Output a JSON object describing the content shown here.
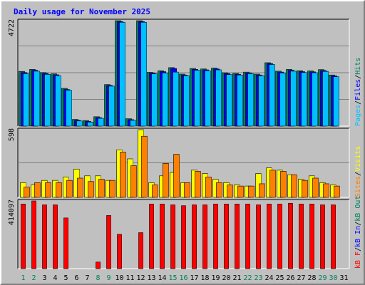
{
  "chart_data": [
    {
      "type": "bar",
      "title": "Daily usage for November 2025",
      "categories": [
        "1",
        "2",
        "3",
        "4",
        "5",
        "6",
        "7",
        "8",
        "9",
        "10",
        "11",
        "12",
        "13",
        "14",
        "15",
        "16",
        "17",
        "18",
        "19",
        "20",
        "21",
        "22",
        "23",
        "24",
        "25",
        "26",
        "27",
        "28",
        "29",
        "30",
        "31"
      ],
      "weekend_days": [
        "1",
        "2",
        "8",
        "9",
        "15",
        "16",
        "22",
        "23",
        "29",
        "30"
      ],
      "ylim": [
        0,
        4722
      ],
      "y_tick_label": "4722",
      "right_label": [
        "Pages",
        "/",
        "Files",
        "/",
        "Hits"
      ],
      "series": [
        {
          "name": "Hits",
          "values": [
            2450,
            2540,
            2400,
            2340,
            1690,
            300,
            250,
            420,
            1860,
            4722,
            330,
            4722,
            2410,
            2480,
            2620,
            2330,
            2580,
            2560,
            2600,
            2390,
            2360,
            2420,
            2330,
            2840,
            2460,
            2540,
            2480,
            2470,
            2530,
            2290,
            0
          ]
        },
        {
          "name": "Files",
          "values": [
            2400,
            2500,
            2360,
            2300,
            1640,
            260,
            210,
            380,
            1820,
            4680,
            290,
            4680,
            2370,
            2440,
            2580,
            2290,
            2540,
            2520,
            2560,
            2350,
            2320,
            2380,
            2290,
            2800,
            2420,
            2500,
            2440,
            2430,
            2490,
            2250,
            0
          ]
        },
        {
          "name": "Pages",
          "values": [
            2350,
            2460,
            2320,
            2260,
            1610,
            230,
            180,
            350,
            1790,
            4650,
            260,
            4650,
            2340,
            2380,
            2420,
            2260,
            2500,
            2480,
            2520,
            2310,
            2290,
            2350,
            2260,
            2760,
            2380,
            2460,
            2400,
            2390,
            2450,
            2210,
            0
          ]
        }
      ],
      "colors": {
        "Hits": "#00805c",
        "Files": "#0000ff",
        "Pages": "#00c0ff"
      }
    },
    {
      "type": "bar",
      "ylim": [
        0,
        598
      ],
      "y_tick_label": "598",
      "right_label": [
        "Sites",
        "/",
        "Visits"
      ],
      "series": [
        {
          "name": "Visits",
          "values": [
            130,
            110,
            150,
            150,
            180,
            250,
            190,
            190,
            150,
            420,
            340,
            598,
            130,
            190,
            220,
            130,
            240,
            210,
            160,
            130,
            110,
            100,
            210,
            260,
            240,
            200,
            160,
            190,
            130,
            110,
            0
          ]
        },
        {
          "name": "Sites",
          "values": [
            90,
            130,
            130,
            130,
            150,
            170,
            140,
            160,
            150,
            400,
            280,
            540,
            110,
            300,
            380,
            130,
            230,
            180,
            130,
            110,
            100,
            100,
            120,
            240,
            230,
            200,
            150,
            170,
            120,
            100,
            0
          ]
        }
      ],
      "colors": {
        "Visits": "#ffff00",
        "Sites": "#ff8000"
      }
    },
    {
      "type": "bar",
      "ylim": [
        0,
        414097
      ],
      "y_tick_label": "414097",
      "right_label": [
        "kB F",
        "/",
        "kB In",
        "/",
        "kB Out"
      ],
      "series": [
        {
          "name": "kB F",
          "values": [
            395000,
            414097,
            390000,
            390000,
            310000,
            0,
            0,
            40000,
            325000,
            210000,
            0,
            220000,
            395000,
            395000,
            390000,
            385000,
            390000,
            390000,
            395000,
            395000,
            395000,
            395000,
            390000,
            395000,
            395000,
            400000,
            395000,
            395000,
            390000,
            390000,
            0
          ]
        }
      ],
      "colors": {
        "kB F": "#ff0000",
        "kB In": "#0000ff",
        "kB Out": "#00805c"
      }
    }
  ]
}
